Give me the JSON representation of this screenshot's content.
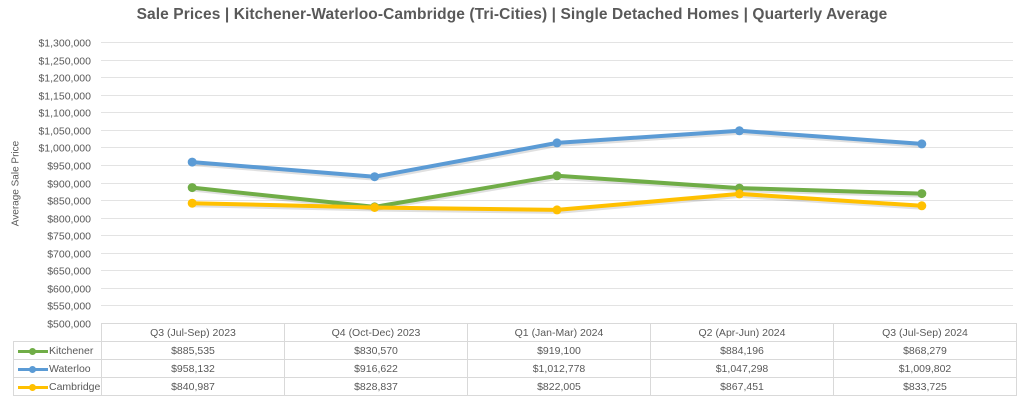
{
  "chart_data": {
    "type": "line",
    "title": "Sale Prices | Kitchener-Waterloo-Cambridge (Tri-Cities) | Single Detached Homes | Quarterly Average",
    "xlabel": "",
    "ylabel": "Average Sale Price",
    "ylim": [
      500000,
      1300000
    ],
    "ytick_step": 50000,
    "yticks": [
      "$500,000",
      "$550,000",
      "$600,000",
      "$650,000",
      "$700,000",
      "$750,000",
      "$800,000",
      "$850,000",
      "$900,000",
      "$950,000",
      "$1,000,000",
      "$1,050,000",
      "$1,100,000",
      "$1,150,000",
      "$1,200,000",
      "$1,250,000",
      "$1,300,000"
    ],
    "grid": true,
    "legend": "data-table-below",
    "categories": [
      "Q3 (Jul-Sep) 2023",
      "Q4 (Oct-Dec) 2023",
      "Q1 (Jan-Mar) 2024",
      "Q2 (Apr-Jun) 2024",
      "Q3 (Jul-Sep) 2024"
    ],
    "series": [
      {
        "name": "Kitchener",
        "color": "#70ad47",
        "values": [
          885535,
          830570,
          919100,
          884196,
          868279
        ],
        "labels": [
          "$885,535",
          "$830,570",
          "$919,100",
          "$884,196",
          "$868,279"
        ]
      },
      {
        "name": "Waterloo",
        "color": "#5b9bd5",
        "values": [
          958132,
          916622,
          1012778,
          1047298,
          1009802
        ],
        "labels": [
          "$958,132",
          "$916,622",
          "$1,012,778",
          "$1,047,298",
          "$1,009,802"
        ]
      },
      {
        "name": "Cambridge",
        "color": "#ffc000",
        "values": [
          840987,
          828837,
          822005,
          867451,
          833725
        ],
        "labels": [
          "$840,987",
          "$828,837",
          "$822,005",
          "$867,451",
          "$833,725"
        ]
      }
    ]
  }
}
